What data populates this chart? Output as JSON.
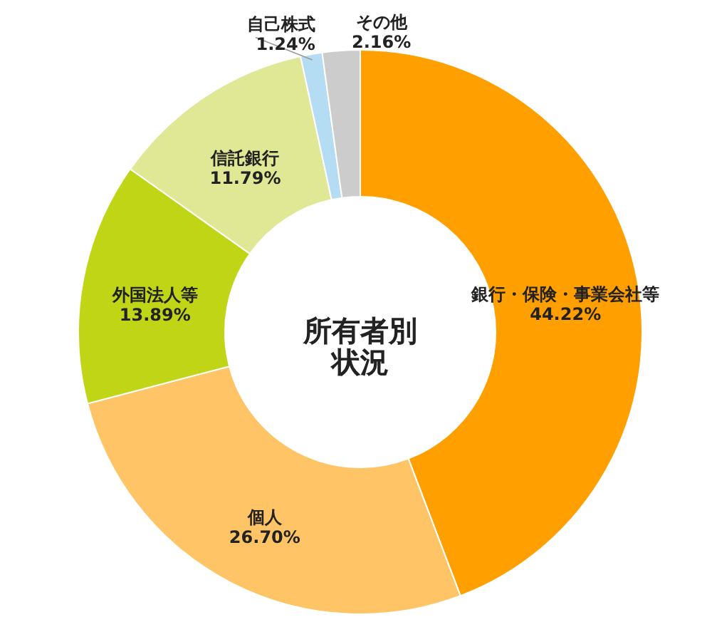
{
  "chart_data": {
    "type": "donut",
    "title": "所有者別状況",
    "categories": [
      "銀行・保険・事業会社等",
      "個人",
      "外国法人等",
      "信託銀行",
      "自己株式",
      "その他"
    ],
    "values": [
      44.22,
      26.7,
      13.89,
      11.79,
      1.24,
      2.16
    ],
    "value_labels": [
      "44.22%",
      "26.70%",
      "13.89%",
      "11.79%",
      "1.24%",
      "2.16%"
    ],
    "colors": [
      "#ff9f00",
      "#ffc466",
      "#bfd516",
      "#e0e896",
      "#b4dcf2",
      "#cccccc"
    ]
  }
}
